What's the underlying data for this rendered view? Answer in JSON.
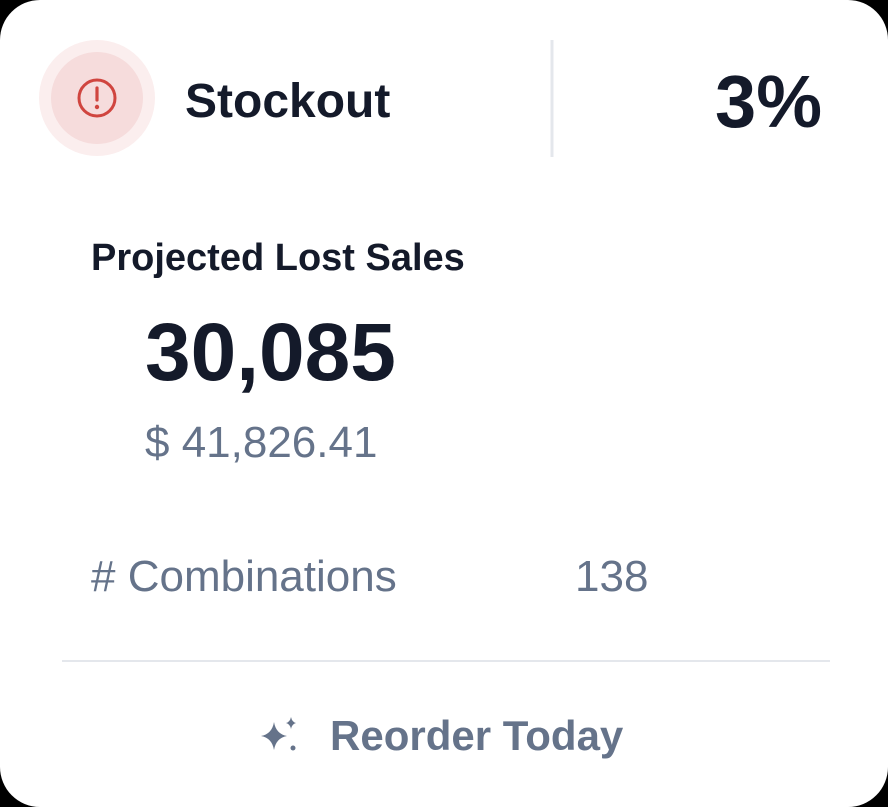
{
  "card": {
    "status": {
      "label": "Stockout",
      "percent": "3%"
    },
    "lost_sales": {
      "title": "Projected Lost Sales",
      "units": "30,085",
      "amount": "$ 41,826.41"
    },
    "combinations": {
      "label": "# Combinations",
      "value": "138"
    },
    "action": {
      "label": "Reorder Today"
    }
  }
}
